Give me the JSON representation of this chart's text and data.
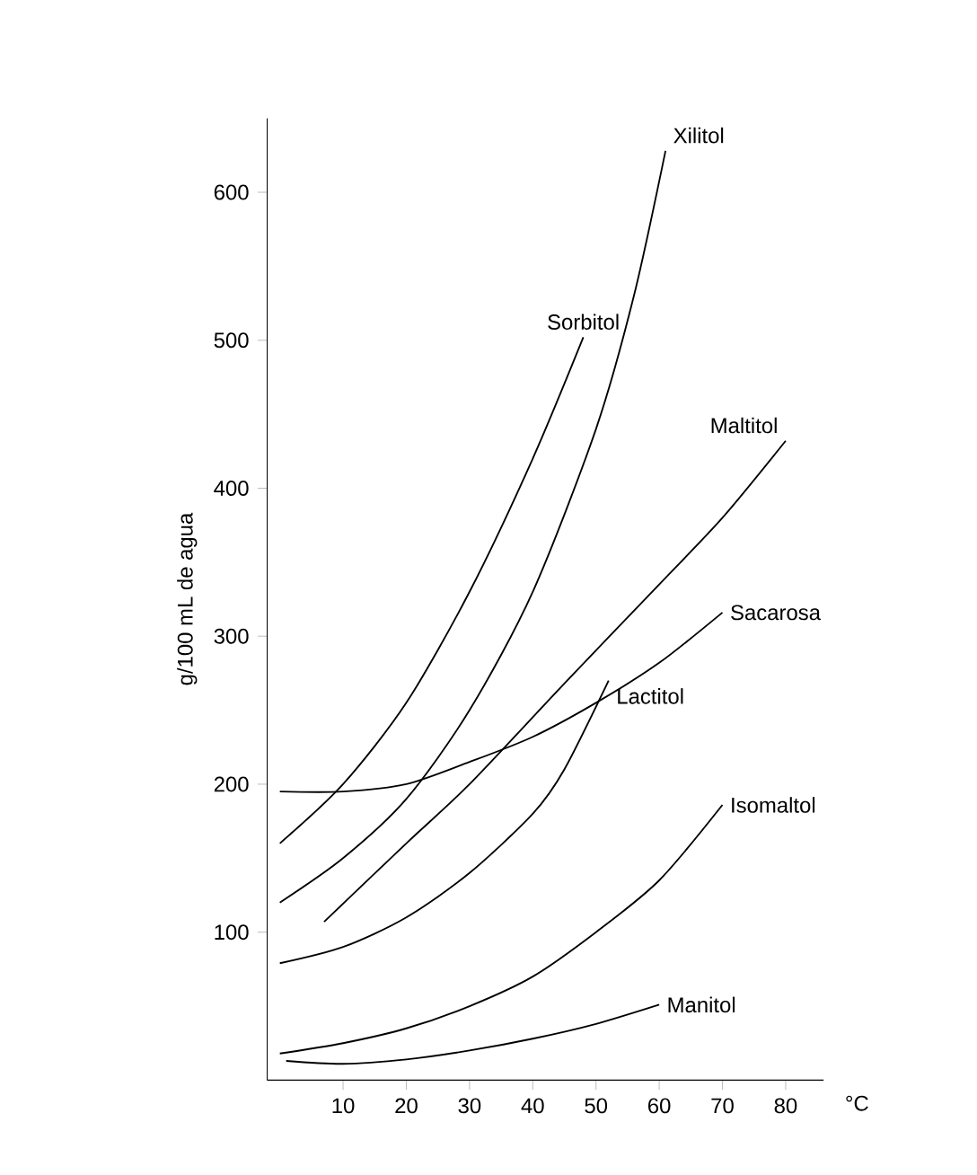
{
  "chart_data": {
    "type": "line",
    "xlabel": "°C",
    "ylabel": "g/100 mL de agua",
    "xlim": [
      -2,
      86
    ],
    "ylim": [
      0,
      650
    ],
    "xticks": [
      10,
      20,
      30,
      40,
      50,
      60,
      70,
      80
    ],
    "yticks": [
      100,
      200,
      300,
      400,
      500,
      600
    ],
    "grid": false,
    "legend": false,
    "marker": "none",
    "line_style": "solid",
    "series": [
      {
        "name": "Xilitol",
        "color": "#000000",
        "x": [
          0,
          10,
          20,
          30,
          40,
          50,
          56,
          61
        ],
        "values": [
          120,
          150,
          190,
          250,
          330,
          440,
          530,
          628
        ]
      },
      {
        "name": "Sorbitol",
        "color": "#000000",
        "x": [
          0,
          10,
          20,
          30,
          40,
          48
        ],
        "values": [
          160,
          200,
          255,
          330,
          420,
          502
        ]
      },
      {
        "name": "Maltitol",
        "color": "#000000",
        "x": [
          7,
          20,
          30,
          45,
          60,
          70,
          80
        ],
        "values": [
          107,
          160,
          200,
          268,
          335,
          380,
          432
        ]
      },
      {
        "name": "Sacarosa",
        "color": "#000000",
        "x": [
          0,
          10,
          20,
          30,
          40,
          50,
          60,
          70
        ],
        "values": [
          195,
          195,
          200,
          215,
          232,
          255,
          282,
          316
        ]
      },
      {
        "name": "Lactitol",
        "color": "#000000",
        "x": [
          0,
          10,
          20,
          30,
          40,
          45,
          52
        ],
        "values": [
          79,
          90,
          110,
          140,
          180,
          210,
          270
        ]
      },
      {
        "name": "Isomaltol",
        "color": "#000000",
        "x": [
          0,
          10,
          20,
          30,
          40,
          50,
          60,
          70
        ],
        "values": [
          18,
          25,
          35,
          50,
          70,
          100,
          135,
          186
        ]
      },
      {
        "name": "Manitol",
        "color": "#000000",
        "x": [
          1,
          10,
          20,
          30,
          40,
          50,
          60
        ],
        "values": [
          13,
          11,
          14,
          20,
          28,
          38,
          51
        ]
      }
    ]
  }
}
